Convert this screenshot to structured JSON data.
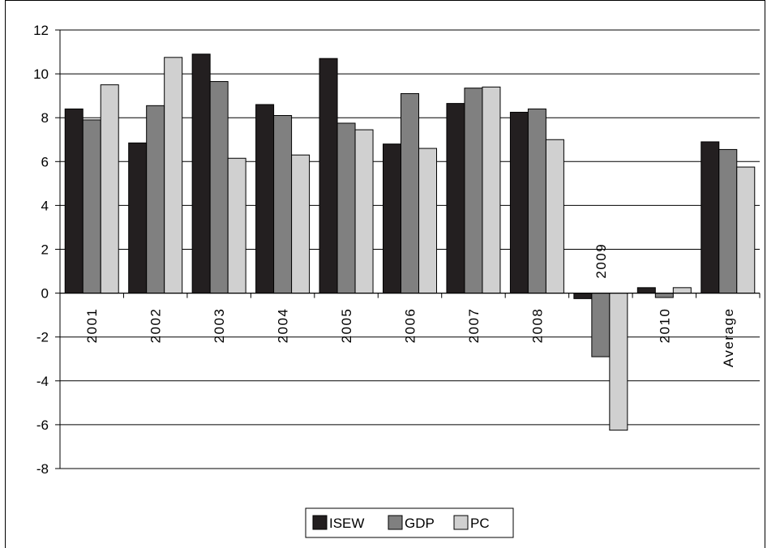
{
  "chart_data": {
    "type": "bar",
    "title": "",
    "xlabel": "",
    "ylabel": "",
    "categories": [
      "2001",
      "2002",
      "2003",
      "2004",
      "2005",
      "2006",
      "2007",
      "2008",
      "2009",
      "2010",
      "Average"
    ],
    "series": [
      {
        "name": "ISEW",
        "color": "#231f20",
        "values": [
          8.4,
          6.85,
          10.9,
          8.6,
          10.7,
          6.8,
          8.65,
          8.25,
          -0.25,
          0.25,
          6.9
        ]
      },
      {
        "name": "GDP",
        "color": "#808080",
        "values": [
          7.9,
          8.55,
          9.65,
          8.1,
          7.75,
          9.1,
          9.35,
          8.4,
          -2.9,
          -0.2,
          6.55
        ]
      },
      {
        "name": "PC",
        "color": "#d0d0d0",
        "values": [
          9.5,
          10.75,
          6.15,
          6.3,
          7.45,
          6.6,
          9.4,
          7.0,
          -6.25,
          0.25,
          5.75
        ]
      }
    ],
    "ylim": [
      -8,
      12
    ],
    "yticks": [
      -8,
      -6,
      -4,
      -2,
      0,
      2,
      4,
      6,
      8,
      10,
      12
    ],
    "grid": true,
    "legend": "bottom"
  }
}
